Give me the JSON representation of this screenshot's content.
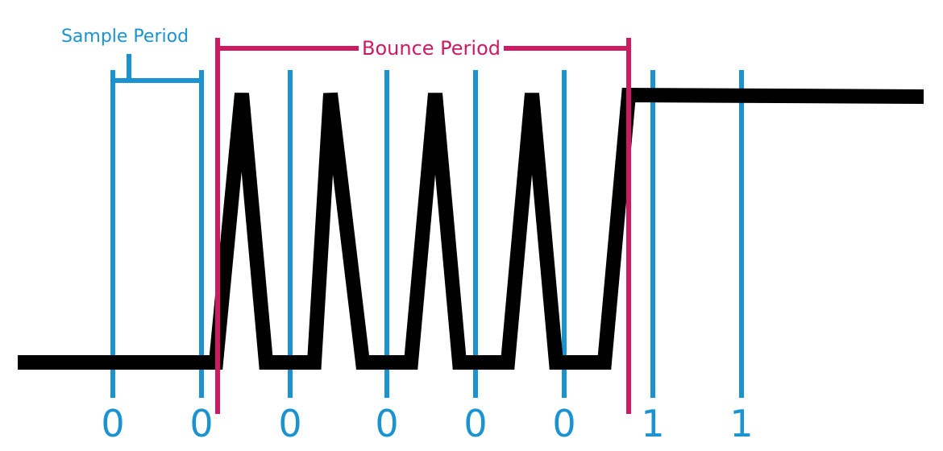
{
  "colors": {
    "sample": "#1a93d0",
    "bounce": "#cc1a63",
    "signal": "#000000",
    "background": "#ffffff"
  },
  "labels": {
    "sample_period": "Sample Period",
    "bounce_period": "Bounce Period"
  },
  "samples": [
    {
      "value": "0"
    },
    {
      "value": "0"
    },
    {
      "value": "0"
    },
    {
      "value": "0"
    },
    {
      "value": "0"
    },
    {
      "value": "0"
    },
    {
      "value": "1"
    },
    {
      "value": "1"
    }
  ]
}
